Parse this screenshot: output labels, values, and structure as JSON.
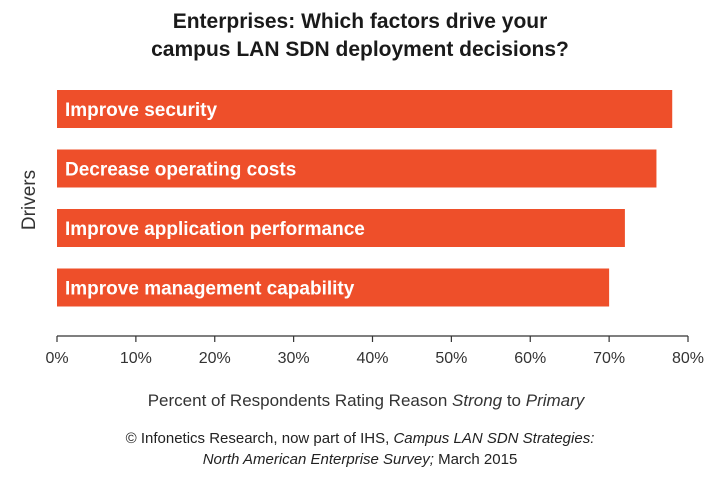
{
  "chart_data": {
    "type": "bar",
    "orientation": "horizontal",
    "title": [
      "Enterprises: Which factors drive your",
      "campus LAN SDN deployment decisions?"
    ],
    "categories": [
      "Improve security",
      "Decrease operating costs",
      "Improve application performance",
      "Improve management capability"
    ],
    "values": [
      78,
      76,
      72,
      70
    ],
    "ylabel": "Drivers",
    "xlabel": {
      "before": "Percent of Respondents Rating Reason ",
      "em1": "Strong",
      "middle": " to ",
      "em2": "Primary"
    },
    "xlim": [
      0,
      80
    ],
    "ticks": [
      0,
      10,
      20,
      30,
      40,
      50,
      60,
      70,
      80
    ],
    "tick_suffix": "%",
    "bar_color": "#ee4f2a",
    "grid": false
  },
  "footer": {
    "line1_plain": "© Infonetics Research, now part of IHS, ",
    "line1_italic": "Campus LAN SDN Strategies:",
    "line2_italic": "North American Enterprise Survey;",
    "line2_plain": " March 2015"
  }
}
